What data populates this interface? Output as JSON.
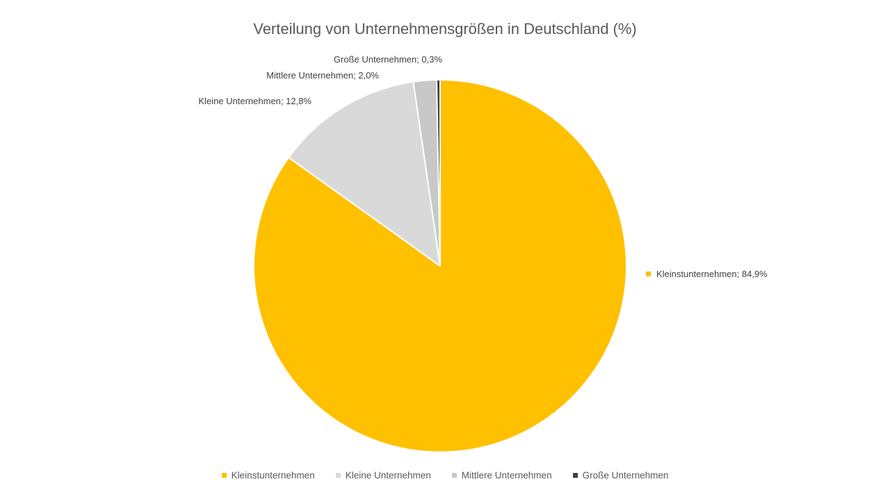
{
  "chart_data": {
    "type": "pie",
    "title": "Verteilung von Unternehmensgrößen in Deutschland (%)",
    "start_angle_deg": 0,
    "direction": "clockwise",
    "legend_position": "bottom",
    "slices": [
      {
        "category": "Kleinstunternehmen",
        "value": 84.9,
        "label": "Kleinstunternehmen; 84,9%",
        "color": "#FFC000"
      },
      {
        "category": "Kleine Unternehmen",
        "value": 12.8,
        "label": "Kleine Unternehmen; 12,8%",
        "color": "#D9D9D9"
      },
      {
        "category": "Mittlere Unternehmen",
        "value": 2.0,
        "label": "Mittlere Unternehmen; 2,0%",
        "color": "#C8C8C8"
      },
      {
        "category": "Große Unternehmen",
        "value": 0.3,
        "label": "Große Unternehmen; 0,3%",
        "color": "#404040"
      }
    ]
  }
}
